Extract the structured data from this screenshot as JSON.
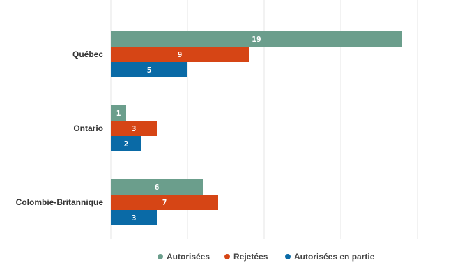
{
  "chart_data": {
    "type": "bar",
    "orientation": "horizontal",
    "categories": [
      "Québec",
      "Ontario",
      "Colombie-Britannique"
    ],
    "series": [
      {
        "name": "Autorisées",
        "color": "#6b9e8c",
        "values": [
          19,
          1,
          6
        ]
      },
      {
        "name": "Rejetées",
        "color": "#d64515",
        "values": [
          9,
          3,
          7
        ]
      },
      {
        "name": "Autorisées en partie",
        "color": "#0a6aa6",
        "values": [
          5,
          2,
          3
        ]
      }
    ],
    "xlim": [
      0,
      20
    ],
    "grid": true,
    "data_labels": true,
    "legend_position": "bottom"
  }
}
